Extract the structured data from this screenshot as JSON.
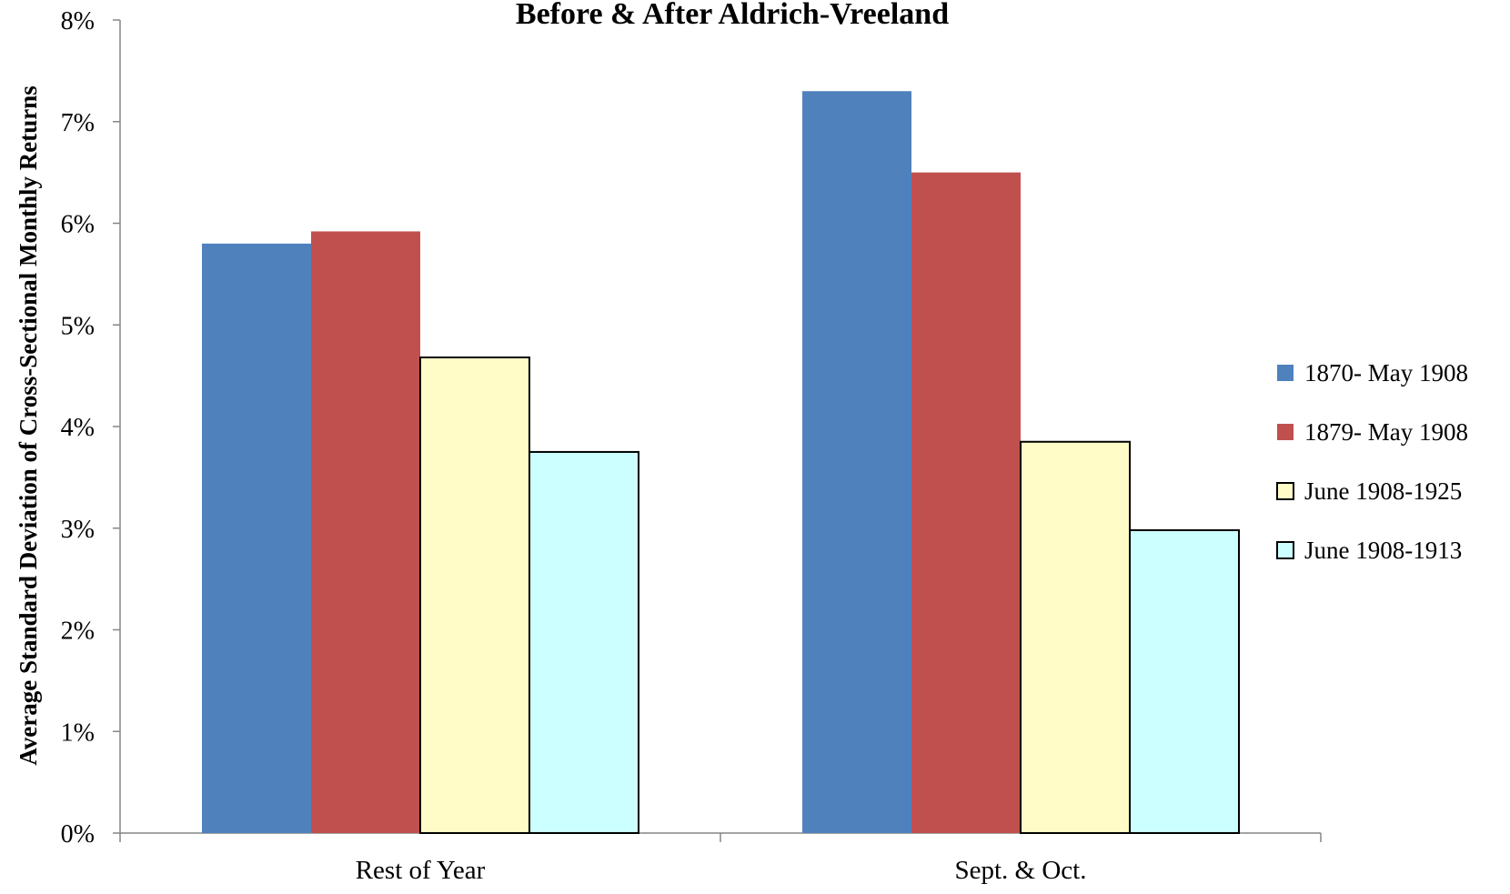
{
  "chart_data": {
    "type": "bar",
    "title": "Before & After Aldrich-Vreeland",
    "xlabel": "",
    "ylabel": "Average Standard Deviation of Cross-Sectional Monthly Returns",
    "ylim": [
      0,
      8
    ],
    "yticks": [
      "0%",
      "1%",
      "2%",
      "3%",
      "4%",
      "5%",
      "6%",
      "7%",
      "8%"
    ],
    "categories": [
      "Rest of Year",
      "Sept. & Oct."
    ],
    "series": [
      {
        "name": "1870- May 1908",
        "values": [
          5.8,
          7.3
        ],
        "color": "#4F81BD",
        "outlined": false
      },
      {
        "name": "1879- May 1908",
        "values": [
          5.92,
          6.5
        ],
        "color": "#C0504D",
        "outlined": false
      },
      {
        "name": "June 1908-1925",
        "values": [
          4.68,
          3.85
        ],
        "color": "#FFFCC8",
        "outlined": true
      },
      {
        "name": "June 1908-1913",
        "values": [
          3.75,
          2.98
        ],
        "color": "#CCFFFF",
        "outlined": true
      }
    ],
    "grid": false,
    "legend_position": "right"
  }
}
